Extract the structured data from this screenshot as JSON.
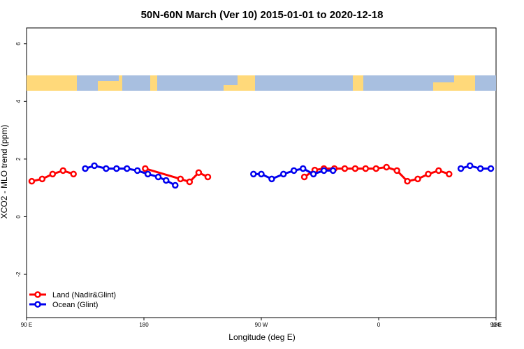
{
  "chart_data": {
    "type": "line",
    "title": "50N-60N March (Ver 10)   2015-01-01 to 2020-12-18",
    "x_label": "Longitude (deg E)",
    "y_label": "XCO2 - MLO trend (ppm)",
    "xlim": [
      90,
      450
    ],
    "ylim": [
      -3.5,
      6.55
    ],
    "xticks": [
      {
        "value": 90,
        "label": "90 E"
      },
      {
        "value": 180,
        "label": "180"
      },
      {
        "value": 270,
        "label": "90 W"
      },
      {
        "value": 360,
        "label": "0"
      },
      {
        "value": 450,
        "label": "90 E"
      },
      {
        "value": 540,
        "label": "180"
      }
    ],
    "yticks": [
      -2,
      0,
      2,
      4,
      6
    ],
    "legend": "bottom-left",
    "series": [
      {
        "name": "Land (Nadir&Glint)",
        "color": "#ff0000",
        "x": [
          94,
          102,
          110,
          118,
          126,
          null,
          181,
          208,
          215,
          222,
          229,
          null,
          303,
          311,
          318,
          326,
          334,
          342,
          350,
          358,
          366,
          374,
          382,
          390,
          398,
          406,
          414
        ],
        "values": [
          1.23,
          1.31,
          1.48,
          1.6,
          1.48,
          null,
          1.67,
          1.31,
          1.21,
          1.53,
          1.38,
          null,
          1.38,
          1.62,
          1.67,
          1.67,
          1.67,
          1.67,
          1.67,
          1.67,
          1.72,
          1.6,
          1.23,
          1.31,
          1.48,
          1.6,
          1.48
        ]
      },
      {
        "name": "Ocean (Glint)",
        "color": "#0000ee",
        "x": [
          135,
          142,
          151,
          159,
          167,
          175,
          183,
          191,
          197,
          204,
          null,
          264,
          270,
          278,
          287,
          295,
          302,
          310,
          318,
          325,
          null,
          423,
          430,
          438,
          446
        ],
        "values": [
          1.67,
          1.77,
          1.67,
          1.67,
          1.67,
          1.6,
          1.48,
          1.38,
          1.26,
          1.09,
          null,
          1.48,
          1.48,
          1.31,
          1.48,
          1.6,
          1.67,
          1.48,
          1.6,
          1.6,
          null,
          1.67,
          1.77,
          1.67,
          1.67
        ]
      }
    ]
  }
}
